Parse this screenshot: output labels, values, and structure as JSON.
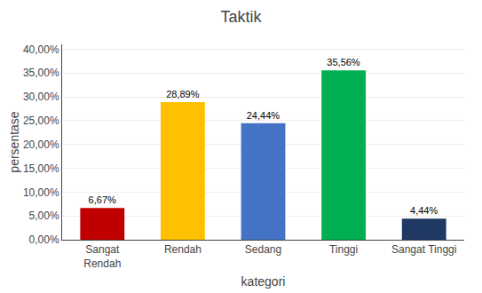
{
  "chart_data": {
    "type": "bar",
    "title": "Taktik",
    "xlabel": "kategori",
    "ylabel": "persentase",
    "categories": [
      "Sangat\nRendah",
      "Rendah",
      "Sedang",
      "Tinggi",
      "Sangat Tinggi"
    ],
    "values": [
      6.67,
      28.89,
      24.44,
      35.56,
      4.44
    ],
    "value_labels": [
      "6,67%",
      "28,89%",
      "24,44%",
      "35,56%",
      "4,44%"
    ],
    "data_labels": true,
    "colors": [
      "#C00000",
      "#FFC000",
      "#4472C4",
      "#00B050",
      "#1F3864"
    ],
    "ylim": [
      0,
      41
    ],
    "yticks": [
      {
        "value": 0,
        "label": "0,00%"
      },
      {
        "value": 5,
        "label": "5,00%"
      },
      {
        "value": 10,
        "label": "10,00%"
      },
      {
        "value": 15,
        "label": "15,00%"
      },
      {
        "value": 20,
        "label": "20,00%"
      },
      {
        "value": 25,
        "label": "25,00%"
      },
      {
        "value": 30,
        "label": "30,00%"
      },
      {
        "value": 35,
        "label": "35,00%"
      },
      {
        "value": 40,
        "label": "40,00%"
      }
    ],
    "grid": true
  }
}
